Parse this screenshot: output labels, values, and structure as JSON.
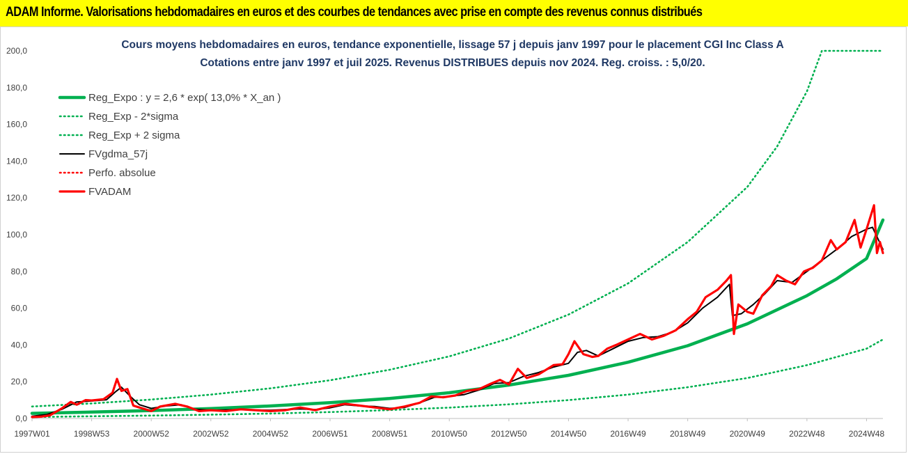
{
  "banner": {
    "title": "ADAM Informe. Valorisations hebdomadaires en euros et des courbes de tendances avec prise en compte des revenus connus distribués"
  },
  "chart_data": {
    "type": "line",
    "title": "Cours moyens hebdomadaires en euros, tendance exponentielle, lissage 57 j depuis janv 1997 pour le placement CGI Inc Class A",
    "subtitle": "Cotations entre janv 1997 et juil 2025. Revenus DISTRIBUES depuis nov 2024. Reg. croiss. : 5,0/20.",
    "xlabel": "",
    "ylabel": "",
    "ylim": [
      0,
      200
    ],
    "xlim": [
      1997.0,
      2025.55
    ],
    "y_ticks": [
      "0,0",
      "20,0",
      "40,0",
      "60,0",
      "80,0",
      "100,0",
      "120,0",
      "140,0",
      "160,0",
      "180,0",
      "200,0"
    ],
    "x_ticks": [
      {
        "label": "1997W01",
        "year": 1997.0
      },
      {
        "label": "1998W53",
        "year": 1999.0
      },
      {
        "label": "2000W52",
        "year": 2001.0
      },
      {
        "label": "2002W52",
        "year": 2003.0
      },
      {
        "label": "2004W52",
        "year": 2005.0
      },
      {
        "label": "2006W51",
        "year": 2007.0
      },
      {
        "label": "2008W51",
        "year": 2009.0
      },
      {
        "label": "2010W50",
        "year": 2011.0
      },
      {
        "label": "2012W50",
        "year": 2013.0
      },
      {
        "label": "2014W50",
        "year": 2015.0
      },
      {
        "label": "2016W49",
        "year": 2017.0
      },
      {
        "label": "2018W49",
        "year": 2019.0
      },
      {
        "label": "2020W49",
        "year": 2021.0
      },
      {
        "label": "2022W48",
        "year": 2023.0
      },
      {
        "label": "2024W48",
        "year": 2025.0
      }
    ],
    "grid": false,
    "legend_position": "top-left",
    "series": [
      {
        "name": "Reg_Expo : y = 2,6 * exp( 13,0% *  X_an )",
        "style": "solid-thick",
        "color": "#00b050",
        "points": [
          [
            1997.0,
            2.8
          ],
          [
            1999.0,
            3.5
          ],
          [
            2001.0,
            4.3
          ],
          [
            2003.0,
            5.4
          ],
          [
            2005.0,
            6.8
          ],
          [
            2007.0,
            8.6
          ],
          [
            2009.0,
            10.9
          ],
          [
            2011.0,
            14.0
          ],
          [
            2013.0,
            18.2
          ],
          [
            2015.0,
            23.5
          ],
          [
            2017.0,
            30.6
          ],
          [
            2019.0,
            39.6
          ],
          [
            2021.0,
            51.5
          ],
          [
            2023.0,
            66.8
          ],
          [
            2024.0,
            76.0
          ],
          [
            2025.0,
            87.0
          ],
          [
            2025.55,
            108.0
          ]
        ]
      },
      {
        "name": "Reg_Exp - 2*sigma",
        "style": "dotted",
        "color": "#00b050",
        "points": [
          [
            1997.0,
            0.8
          ],
          [
            1999.0,
            1.2
          ],
          [
            2001.0,
            1.6
          ],
          [
            2003.0,
            2.1
          ],
          [
            2005.0,
            2.7
          ],
          [
            2007.0,
            3.5
          ],
          [
            2009.0,
            4.6
          ],
          [
            2011.0,
            5.9
          ],
          [
            2013.0,
            7.7
          ],
          [
            2015.0,
            10.0
          ],
          [
            2017.0,
            13.0
          ],
          [
            2019.0,
            17.0
          ],
          [
            2021.0,
            22.0
          ],
          [
            2023.0,
            29.0
          ],
          [
            2025.0,
            38.0
          ],
          [
            2025.55,
            43.0
          ]
        ]
      },
      {
        "name": "Reg_Exp + 2 sigma",
        "style": "dotted",
        "color": "#00b050",
        "points": [
          [
            1997.0,
            6.5
          ],
          [
            1999.0,
            8.2
          ],
          [
            2001.0,
            10.3
          ],
          [
            2003.0,
            13.0
          ],
          [
            2005.0,
            16.4
          ],
          [
            2007.0,
            20.8
          ],
          [
            2009.0,
            26.5
          ],
          [
            2011.0,
            33.8
          ],
          [
            2013.0,
            43.5
          ],
          [
            2015.0,
            56.5
          ],
          [
            2017.0,
            73.5
          ],
          [
            2019.0,
            96.0
          ],
          [
            2021.0,
            126.0
          ],
          [
            2022.0,
            148.0
          ],
          [
            2023.0,
            178.0
          ],
          [
            2023.5,
            200.0
          ],
          [
            2025.55,
            200.0
          ]
        ]
      },
      {
        "name": "FVgdma_57j",
        "style": "solid",
        "color": "#000000",
        "points": [
          [
            1997.0,
            1.2
          ],
          [
            1997.5,
            2.2
          ],
          [
            1998.0,
            5.0
          ],
          [
            1998.5,
            9.0
          ],
          [
            1999.0,
            9.5
          ],
          [
            1999.5,
            10.2
          ],
          [
            1999.8,
            14.5
          ],
          [
            2000.0,
            17.0
          ],
          [
            2000.3,
            12.0
          ],
          [
            2000.6,
            7.5
          ],
          [
            2001.0,
            5.5
          ],
          [
            2001.5,
            6.8
          ],
          [
            2002.0,
            7.5
          ],
          [
            2002.5,
            5.0
          ],
          [
            2003.0,
            4.5
          ],
          [
            2004.0,
            4.8
          ],
          [
            2005.0,
            4.5
          ],
          [
            2006.0,
            5.2
          ],
          [
            2006.5,
            4.8
          ],
          [
            2007.0,
            5.8
          ],
          [
            2007.5,
            7.5
          ],
          [
            2008.0,
            6.8
          ],
          [
            2008.5,
            6.5
          ],
          [
            2009.0,
            5.5
          ],
          [
            2009.5,
            6.0
          ],
          [
            2010.0,
            8.5
          ],
          [
            2010.5,
            11.5
          ],
          [
            2011.0,
            12.0
          ],
          [
            2011.5,
            13.0
          ],
          [
            2012.0,
            15.5
          ],
          [
            2012.5,
            19.0
          ],
          [
            2013.0,
            19.5
          ],
          [
            2013.5,
            23.0
          ],
          [
            2014.0,
            25.0
          ],
          [
            2014.5,
            28.0
          ],
          [
            2015.0,
            30.0
          ],
          [
            2015.3,
            36.0
          ],
          [
            2015.6,
            37.0
          ],
          [
            2016.0,
            34.0
          ],
          [
            2016.5,
            38.0
          ],
          [
            2017.0,
            42.0
          ],
          [
            2017.5,
            44.0
          ],
          [
            2018.0,
            44.5
          ],
          [
            2018.5,
            47.0
          ],
          [
            2019.0,
            52.0
          ],
          [
            2019.5,
            60.0
          ],
          [
            2020.0,
            66.0
          ],
          [
            2020.4,
            73.0
          ],
          [
            2020.5,
            56.0
          ],
          [
            2020.8,
            57.0
          ],
          [
            2021.2,
            62.0
          ],
          [
            2021.6,
            68.0
          ],
          [
            2022.0,
            75.0
          ],
          [
            2022.5,
            74.0
          ],
          [
            2023.0,
            80.0
          ],
          [
            2023.5,
            86.0
          ],
          [
            2024.0,
            92.0
          ],
          [
            2024.5,
            99.0
          ],
          [
            2025.0,
            103.0
          ],
          [
            2025.2,
            104.0
          ],
          [
            2025.55,
            92.0
          ]
        ]
      },
      {
        "name": "Perfo. absolue",
        "style": "dotted",
        "color": "#ff0000",
        "points": []
      },
      {
        "name": "FVADAM",
        "style": "solid-thick",
        "color": "#ff0000",
        "points": [
          [
            1997.0,
            0.8
          ],
          [
            1997.3,
            1.0
          ],
          [
            1997.6,
            1.7
          ],
          [
            1998.0,
            5.5
          ],
          [
            1998.3,
            9.0
          ],
          [
            1998.5,
            7.5
          ],
          [
            1998.8,
            10.0
          ],
          [
            1999.0,
            9.8
          ],
          [
            1999.4,
            10.5
          ],
          [
            1999.7,
            14.0
          ],
          [
            1999.85,
            21.5
          ],
          [
            2000.0,
            15.0
          ],
          [
            2000.2,
            16.0
          ],
          [
            2000.4,
            7.0
          ],
          [
            2000.6,
            6.0
          ],
          [
            2001.0,
            4.0
          ],
          [
            2001.3,
            6.5
          ],
          [
            2001.8,
            8.0
          ],
          [
            2002.2,
            6.5
          ],
          [
            2002.6,
            4.0
          ],
          [
            2003.0,
            4.5
          ],
          [
            2003.5,
            4.0
          ],
          [
            2004.0,
            5.0
          ],
          [
            2004.5,
            4.5
          ],
          [
            2005.0,
            4.0
          ],
          [
            2005.5,
            4.5
          ],
          [
            2006.0,
            6.0
          ],
          [
            2006.5,
            4.5
          ],
          [
            2007.0,
            6.5
          ],
          [
            2007.5,
            8.0
          ],
          [
            2008.0,
            7.0
          ],
          [
            2008.5,
            6.0
          ],
          [
            2009.0,
            5.0
          ],
          [
            2009.5,
            6.5
          ],
          [
            2010.0,
            8.5
          ],
          [
            2010.4,
            12.0
          ],
          [
            2010.8,
            11.5
          ],
          [
            2011.2,
            12.5
          ],
          [
            2011.6,
            15.0
          ],
          [
            2012.0,
            16.0
          ],
          [
            2012.4,
            19.0
          ],
          [
            2012.7,
            21.0
          ],
          [
            2013.0,
            18.5
          ],
          [
            2013.3,
            27.0
          ],
          [
            2013.6,
            22.0
          ],
          [
            2014.0,
            24.0
          ],
          [
            2014.5,
            29.0
          ],
          [
            2014.8,
            29.5
          ],
          [
            2015.0,
            35.0
          ],
          [
            2015.2,
            42.0
          ],
          [
            2015.5,
            35.0
          ],
          [
            2015.8,
            33.5
          ],
          [
            2016.0,
            34.0
          ],
          [
            2016.3,
            38.0
          ],
          [
            2016.6,
            40.0
          ],
          [
            2017.0,
            43.0
          ],
          [
            2017.4,
            46.0
          ],
          [
            2017.8,
            43.0
          ],
          [
            2018.2,
            45.0
          ],
          [
            2018.6,
            48.0
          ],
          [
            2019.0,
            54.0
          ],
          [
            2019.3,
            58.0
          ],
          [
            2019.6,
            66.0
          ],
          [
            2020.0,
            70.0
          ],
          [
            2020.3,
            75.0
          ],
          [
            2020.45,
            78.0
          ],
          [
            2020.55,
            46.0
          ],
          [
            2020.7,
            62.0
          ],
          [
            2021.0,
            58.0
          ],
          [
            2021.2,
            57.0
          ],
          [
            2021.5,
            67.0
          ],
          [
            2021.8,
            72.0
          ],
          [
            2022.0,
            78.0
          ],
          [
            2022.3,
            75.0
          ],
          [
            2022.6,
            73.0
          ],
          [
            2022.9,
            80.0
          ],
          [
            2023.2,
            82.0
          ],
          [
            2023.5,
            86.0
          ],
          [
            2023.8,
            97.0
          ],
          [
            2024.0,
            92.0
          ],
          [
            2024.3,
            96.0
          ],
          [
            2024.6,
            108.0
          ],
          [
            2024.8,
            93.0
          ],
          [
            2025.0,
            103.0
          ],
          [
            2025.25,
            116.0
          ],
          [
            2025.35,
            90.0
          ],
          [
            2025.45,
            96.0
          ],
          [
            2025.55,
            90.0
          ]
        ]
      }
    ]
  }
}
